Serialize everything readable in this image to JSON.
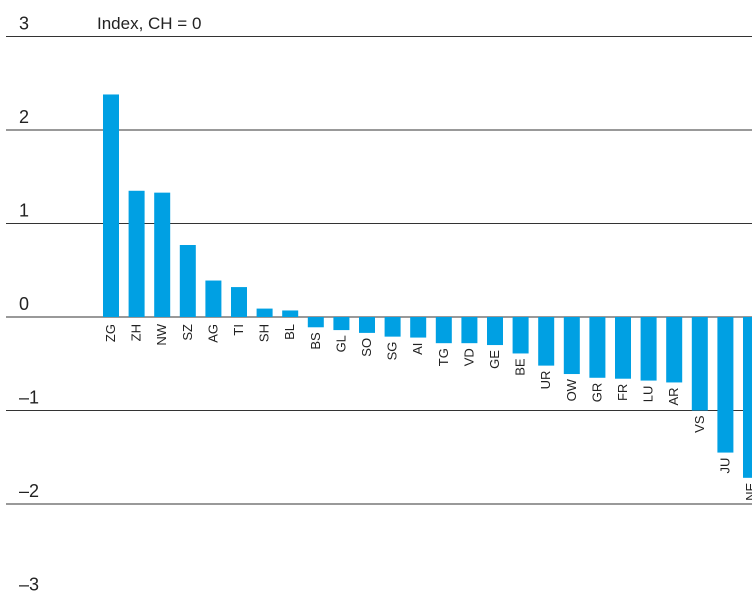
{
  "chart_data": {
    "type": "bar",
    "title": "",
    "unit_label": "Index, CH = 0",
    "xlabel": "",
    "ylabel": "",
    "ylim": [
      -3,
      3
    ],
    "yticks": [
      3,
      2,
      1,
      0,
      -1,
      -2,
      -3
    ],
    "ytick_labels": [
      "3",
      "2",
      "1",
      "0",
      "–1",
      "–2",
      "–3"
    ],
    "grid": true,
    "bar_color": "#00a0e3",
    "categories": [
      "ZG",
      "ZH",
      "NW",
      "SZ",
      "AG",
      "TI",
      "SH",
      "BL",
      "BS",
      "GL",
      "SO",
      "SG",
      "AI",
      "TG",
      "VD",
      "GE",
      "BE",
      "UR",
      "OW",
      "GR",
      "FR",
      "LU",
      "AR",
      "VS",
      "JU",
      "NE"
    ],
    "values": [
      2.38,
      1.35,
      1.33,
      0.77,
      0.39,
      0.32,
      0.09,
      0.07,
      -0.11,
      -0.14,
      -0.17,
      -0.21,
      -0.22,
      -0.28,
      -0.28,
      -0.3,
      -0.39,
      -0.52,
      -0.61,
      -0.65,
      -0.66,
      -0.68,
      -0.7,
      -1.0,
      -1.45,
      -1.72
    ]
  }
}
